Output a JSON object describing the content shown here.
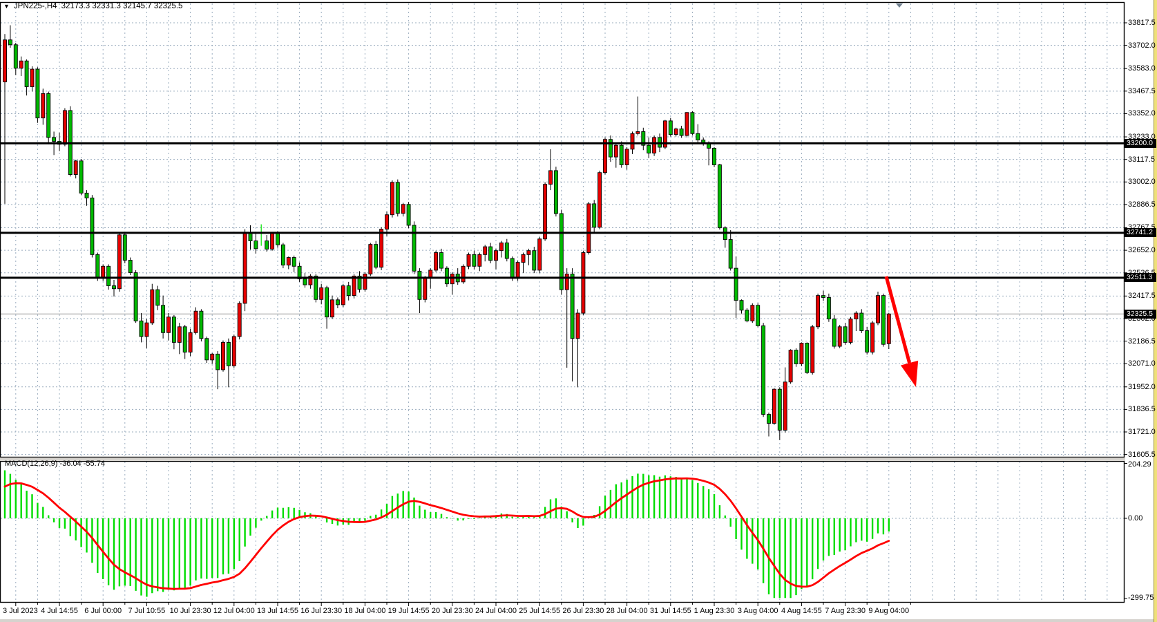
{
  "header": {
    "dropdown_icon": "▼",
    "symbol": "JPN225-,H4",
    "ohlc_text": "32173.3 32331.3 32145.7 32325.5"
  },
  "chart_data": {
    "type": "candlestick",
    "symbol": "JPN225-",
    "timeframe": "H4",
    "current_bar": {
      "open": 32173.3,
      "high": 32331.3,
      "low": 32145.7,
      "close": 32325.5
    },
    "price_axis_ticks": [
      {
        "v": 33817.5,
        "label": "33817.5"
      },
      {
        "v": 33702.0,
        "label": "33702.0"
      },
      {
        "v": 33583.0,
        "label": "33583.0"
      },
      {
        "v": 33467.5,
        "label": "33467.5"
      },
      {
        "v": 33352.0,
        "label": "33352.0"
      },
      {
        "v": 33233.0,
        "label": "33233.0"
      },
      {
        "v": 33117.5,
        "label": "33117.5"
      },
      {
        "v": 33002.0,
        "label": "33002.0"
      },
      {
        "v": 32886.5,
        "label": "32886.5"
      },
      {
        "v": 32767.5,
        "label": "32767.5"
      },
      {
        "v": 32652.0,
        "label": "32652.0"
      },
      {
        "v": 32536.5,
        "label": "32536.5"
      },
      {
        "v": 32417.5,
        "label": "32417.5"
      },
      {
        "v": 32302.0,
        "label": "32302.0"
      },
      {
        "v": 32186.5,
        "label": "32186.5"
      },
      {
        "v": 32071.0,
        "label": "32071.0"
      },
      {
        "v": 31952.0,
        "label": "31952.0"
      },
      {
        "v": 31836.5,
        "label": "31836.5"
      },
      {
        "v": 31721.0,
        "label": "31721.0"
      },
      {
        "v": 31605.5,
        "label": "31605.5"
      }
    ],
    "time_axis_labels": [
      "3 Jul 2023",
      "4 Jul 14:55",
      "6 Jul 00:00",
      "7 Jul 10:55",
      "10 Jul 23:30",
      "12 Jul 04:00",
      "13 Jul 14:55",
      "16 Jul 23:30",
      "18 Jul 04:00",
      "19 Jul 14:55",
      "20 Jul 23:30",
      "24 Jul 04:00",
      "25 Jul 14:55",
      "26 Jul 23:30",
      "28 Jul 04:00",
      "31 Jul 14:55",
      "1 Aug 23:30",
      "3 Aug 04:00",
      "4 Aug 14:55",
      "7 Aug 23:30",
      "9 Aug 04:00"
    ],
    "sr_lines": [
      {
        "value": 33200.0,
        "label": "33200.0"
      },
      {
        "value": 32741.2,
        "label": "32741.2"
      },
      {
        "value": 32511.3,
        "label": "32511.3"
      }
    ],
    "current_price": {
      "value": 32325.5,
      "label": "32325.5"
    },
    "macd": {
      "name": "MACD(12,26,9)",
      "main_value": "-36.04",
      "signal_value": "-55.74",
      "scale_top": "204.29",
      "scale_zero": "0.00",
      "scale_bottom": "-299.75",
      "params": {
        "fast": 12,
        "slow": 26,
        "signal": 9
      }
    },
    "annotation": {
      "type": "down-right-arrow",
      "color": "#FF0000"
    },
    "colors": {
      "up_candle": "#E60000",
      "down_candle": "#00B900",
      "doji": "#33E833",
      "macd_hist": "#00DD00",
      "macd_signal": "#FF0000",
      "grid": "#9AACBE",
      "sr_line": "#000000",
      "current_price_line": "#9A9A9A"
    },
    "candles": [
      [
        33515,
        33760,
        32890,
        33730
      ],
      [
        33730,
        33805,
        33690,
        33705
      ],
      [
        33705,
        33715,
        33550,
        33585
      ],
      [
        33585,
        33645,
        33545,
        33622
      ],
      [
        33622,
        33630,
        33445,
        33490
      ],
      [
        33490,
        33595,
        33465,
        33580
      ],
      [
        33580,
        33590,
        33305,
        33330
      ],
      [
        33330,
        33480,
        33295,
        33455
      ],
      [
        33455,
        33465,
        33195,
        33230
      ],
      [
        33230,
        33260,
        33140,
        33210
      ],
      [
        33210,
        33255,
        33160,
        33195
      ],
      [
        33195,
        33380,
        33185,
        33368
      ],
      [
        33368,
        33390,
        33030,
        33040
      ],
      [
        33040,
        33115,
        33020,
        33110
      ],
      [
        33110,
        33120,
        32935,
        32945
      ],
      [
        32945,
        32960,
        32880,
        32920
      ],
      [
        32920,
        32935,
        32615,
        32630
      ],
      [
        32630,
        32640,
        32495,
        32510
      ],
      [
        32510,
        32580,
        32495,
        32570
      ],
      [
        32570,
        32580,
        32450,
        32470
      ],
      [
        32470,
        32500,
        32415,
        32455
      ],
      [
        32455,
        32740,
        32440,
        32731
      ],
      [
        32731,
        32745,
        32585,
        32601
      ],
      [
        32601,
        32615,
        32525,
        32537
      ],
      [
        32537,
        32550,
        32280,
        32290
      ],
      [
        32290,
        32330,
        32180,
        32210
      ],
      [
        32210,
        32300,
        32150,
        32280
      ],
      [
        32280,
        32480,
        32270,
        32450
      ],
      [
        32450,
        32470,
        32345,
        32370
      ],
      [
        32370,
        32420,
        32200,
        32230
      ],
      [
        32230,
        32330,
        32190,
        32310
      ],
      [
        32310,
        32320,
        32145,
        32180
      ],
      [
        32180,
        32280,
        32120,
        32260
      ],
      [
        32260,
        32270,
        32095,
        32130
      ],
      [
        32130,
        32250,
        32110,
        32230
      ],
      [
        32230,
        32360,
        32220,
        32340
      ],
      [
        32340,
        32350,
        32185,
        32200
      ],
      [
        32200,
        32210,
        32075,
        32090
      ],
      [
        32090,
        32125,
        32070,
        32120
      ],
      [
        32120,
        32135,
        31940,
        32040
      ],
      [
        32040,
        32190,
        32030,
        32180
      ],
      [
        32180,
        32200,
        31950,
        32060
      ],
      [
        32060,
        32220,
        32050,
        32210
      ],
      [
        32210,
        32390,
        32195,
        32380
      ],
      [
        32380,
        32760,
        32340,
        32740
      ],
      [
        32740,
        32780,
        32655,
        32700
      ],
      [
        32700,
        32740,
        32635,
        32660
      ],
      [
        32700,
        32785,
        32675,
        32700
      ],
      [
        32700,
        32730,
        32645,
        32658
      ],
      [
        32658,
        32745,
        32650,
        32740
      ],
      [
        32740,
        32750,
        32665,
        32680
      ],
      [
        32680,
        32690,
        32560,
        32576
      ],
      [
        32576,
        32620,
        32555,
        32615
      ],
      [
        32615,
        32625,
        32540,
        32570
      ],
      [
        32570,
        32590,
        32490,
        32505
      ],
      [
        32505,
        32535,
        32460,
        32475
      ],
      [
        32475,
        32530,
        32455,
        32520
      ],
      [
        32520,
        32530,
        32385,
        32400
      ],
      [
        32400,
        32480,
        32375,
        32460
      ],
      [
        32460,
        32470,
        32250,
        32310
      ],
      [
        32310,
        32420,
        32300,
        32398
      ],
      [
        32398,
        32410,
        32355,
        32373
      ],
      [
        32373,
        32480,
        32360,
        32470
      ],
      [
        32470,
        32490,
        32395,
        32420
      ],
      [
        32420,
        32530,
        32405,
        32520
      ],
      [
        32520,
        32545,
        32435,
        32452
      ],
      [
        32452,
        32540,
        32440,
        32530
      ],
      [
        32530,
        32690,
        32520,
        32682
      ],
      [
        32682,
        32700,
        32555,
        32565
      ],
      [
        32565,
        32770,
        32550,
        32760
      ],
      [
        32760,
        32850,
        32725,
        32834
      ],
      [
        32834,
        33010,
        32820,
        33000
      ],
      [
        33000,
        33015,
        32825,
        32841
      ],
      [
        32841,
        32895,
        32825,
        32887
      ],
      [
        32887,
        32900,
        32765,
        32780
      ],
      [
        32780,
        32800,
        32530,
        32545
      ],
      [
        32545,
        32560,
        32330,
        32400
      ],
      [
        32400,
        32520,
        32385,
        32510
      ],
      [
        32510,
        32560,
        32455,
        32550
      ],
      [
        32550,
        32650,
        32540,
        32640
      ],
      [
        32640,
        32660,
        32545,
        32560
      ],
      [
        32560,
        32570,
        32465,
        32480
      ],
      [
        32480,
        32540,
        32425,
        32530
      ],
      [
        32530,
        32560,
        32475,
        32490
      ],
      [
        32490,
        32580,
        32480,
        32570
      ],
      [
        32570,
        32640,
        32555,
        32630
      ],
      [
        32630,
        32650,
        32555,
        32570
      ],
      [
        32570,
        32640,
        32545,
        32630
      ],
      [
        32630,
        32680,
        32595,
        32670
      ],
      [
        32670,
        32690,
        32585,
        32600
      ],
      [
        32600,
        32660,
        32555,
        32650
      ],
      [
        32650,
        32700,
        32615,
        32690
      ],
      [
        32690,
        32710,
        32595,
        32610
      ],
      [
        32610,
        32620,
        32495,
        32510
      ],
      [
        32510,
        32600,
        32495,
        32590
      ],
      [
        32590,
        32640,
        32535,
        32630
      ],
      [
        32630,
        32660,
        32575,
        32650
      ],
      [
        32650,
        32670,
        32535,
        32550
      ],
      [
        32550,
        32720,
        32535,
        32710
      ],
      [
        32710,
        33000,
        32700,
        32990
      ],
      [
        32990,
        33170,
        32960,
        33060
      ],
      [
        33060,
        33080,
        32825,
        32840
      ],
      [
        32840,
        32860,
        32425,
        32450
      ],
      [
        32450,
        32560,
        32050,
        32530
      ],
      [
        32530,
        32560,
        31980,
        32200
      ],
      [
        32200,
        32350,
        31950,
        32330
      ],
      [
        32330,
        32650,
        32320,
        32640
      ],
      [
        32640,
        32900,
        32630,
        32890
      ],
      [
        32890,
        32910,
        32745,
        32770
      ],
      [
        32770,
        33060,
        32760,
        33050
      ],
      [
        33050,
        33230,
        33040,
        33220
      ],
      [
        33220,
        33240,
        33105,
        33130
      ],
      [
        33130,
        33200,
        33075,
        33190
      ],
      [
        33190,
        33210,
        33075,
        33090
      ],
      [
        33090,
        33180,
        33065,
        33170
      ],
      [
        33170,
        33260,
        33145,
        33250
      ],
      [
        33250,
        33440,
        33240,
        33260
      ],
      [
        33260,
        33280,
        33165,
        33190
      ],
      [
        33190,
        33230,
        33125,
        33150
      ],
      [
        33150,
        33240,
        33135,
        33230
      ],
      [
        33230,
        33250,
        33155,
        33180
      ],
      [
        33180,
        33320,
        33170,
        33315
      ],
      [
        33315,
        33330,
        33235,
        33245
      ],
      [
        33245,
        33280,
        33235,
        33274
      ],
      [
        33274,
        33290,
        33228,
        33240
      ],
      [
        33240,
        33360,
        33230,
        33358
      ],
      [
        33358,
        33365,
        33240,
        33250
      ],
      [
        33250,
        33298,
        33205,
        33217
      ],
      [
        33217,
        33230,
        33188,
        33199
      ],
      [
        33199,
        33210,
        33087,
        33175
      ],
      [
        33175,
        33180,
        33078,
        33090
      ],
      [
        33090,
        33095,
        32758,
        32767
      ],
      [
        32767,
        32775,
        32665,
        32707
      ],
      [
        32707,
        32755,
        32548,
        32560
      ],
      [
        32560,
        32620,
        32305,
        32395
      ],
      [
        32395,
        32400,
        32328,
        32345
      ],
      [
        32345,
        32355,
        32283,
        32290
      ],
      [
        32290,
        32380,
        32280,
        32370
      ],
      [
        32370,
        32380,
        32258,
        32265
      ],
      [
        32265,
        32280,
        31798,
        31811
      ],
      [
        31811,
        31820,
        31698,
        31765
      ],
      [
        31765,
        31945,
        31758,
        31940
      ],
      [
        31940,
        31950,
        31680,
        31730
      ],
      [
        31730,
        32052,
        31718,
        31977
      ],
      [
        31977,
        32145,
        31968,
        32140
      ],
      [
        32140,
        32150,
        32055,
        32070
      ],
      [
        32070,
        32180,
        32058,
        32176
      ],
      [
        32176,
        32180,
        32018,
        32025
      ],
      [
        32025,
        32270,
        32015,
        32260
      ],
      [
        32260,
        32430,
        32248,
        32420
      ],
      [
        32420,
        32445,
        32392,
        32410
      ],
      [
        32410,
        32430,
        32285,
        32300
      ],
      [
        32300,
        32320,
        32148,
        32160
      ],
      [
        32160,
        32270,
        32150,
        32260
      ],
      [
        32260,
        32280,
        32168,
        32180
      ],
      [
        32180,
        32310,
        32170,
        32300
      ],
      [
        32300,
        32340,
        32238,
        32330
      ],
      [
        32330,
        32350,
        32228,
        32240
      ],
      [
        32240,
        32260,
        32118,
        32130
      ],
      [
        32130,
        32290,
        32118,
        32280
      ],
      [
        32280,
        32440,
        32268,
        32420
      ],
      [
        32420,
        32430,
        32158,
        32170
      ],
      [
        32173.3,
        32331.3,
        32145.7,
        32325.5
      ]
    ]
  }
}
